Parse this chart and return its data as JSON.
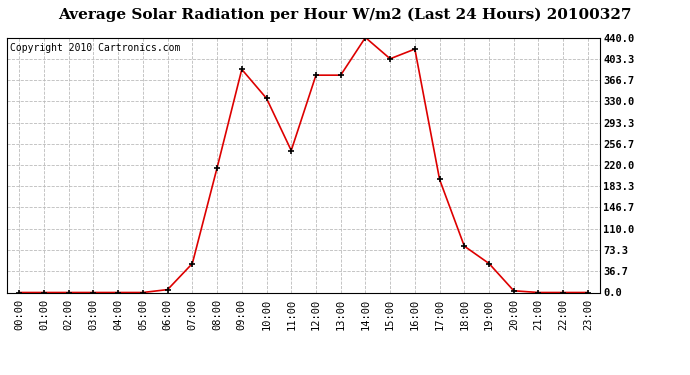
{
  "title": "Average Solar Radiation per Hour W/m2 (Last 24 Hours) 20100327",
  "copyright": "Copyright 2010 Cartronics.com",
  "x_labels": [
    "00:00",
    "01:00",
    "02:00",
    "03:00",
    "04:00",
    "05:00",
    "06:00",
    "07:00",
    "08:00",
    "09:00",
    "10:00",
    "11:00",
    "12:00",
    "13:00",
    "14:00",
    "15:00",
    "16:00",
    "17:00",
    "18:00",
    "19:00",
    "20:00",
    "21:00",
    "22:00",
    "23:00"
  ],
  "y_values": [
    0.0,
    0.0,
    0.0,
    0.0,
    0.0,
    0.0,
    5.0,
    50.0,
    215.0,
    385.0,
    335.0,
    245.0,
    375.0,
    375.0,
    440.0,
    403.3,
    420.0,
    195.0,
    80.0,
    50.0,
    3.0,
    0.0,
    0.0,
    0.0
  ],
  "line_color": "#dd0000",
  "marker": "+",
  "marker_size": 5,
  "marker_color": "#000000",
  "background_color": "#ffffff",
  "grid_color": "#bbbbbb",
  "title_fontsize": 11,
  "copyright_fontsize": 7,
  "tick_fontsize": 7.5,
  "ytick_values": [
    0.0,
    36.7,
    73.3,
    110.0,
    146.7,
    183.3,
    220.0,
    256.7,
    293.3,
    330.0,
    366.7,
    403.3,
    440.0
  ],
  "ylim": [
    0,
    440
  ]
}
